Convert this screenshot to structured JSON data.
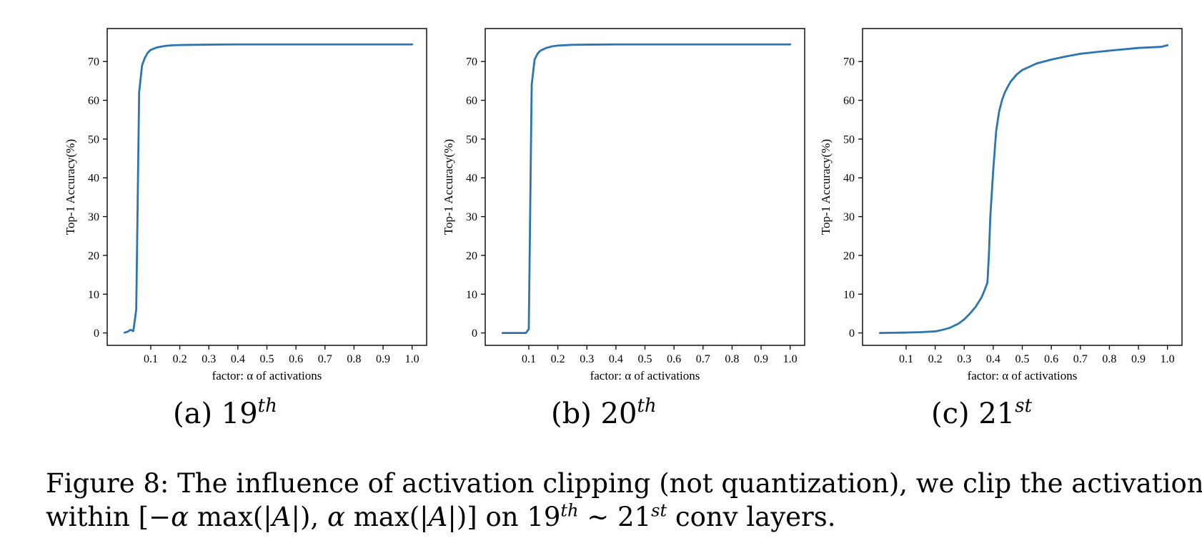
{
  "chart_data": [
    {
      "type": "line",
      "subcaption": {
        "label": "(a) 19",
        "sup": "th"
      },
      "xlabel": "factor: α of activations",
      "ylabel": "Top-1 Accuracy(%)",
      "xlim": [
        -0.05,
        1.05
      ],
      "ylim": [
        -3.2,
        78.5
      ],
      "xticks": [
        0.1,
        0.2,
        0.3,
        0.4,
        0.5,
        0.6,
        0.7,
        0.8,
        0.9,
        1.0
      ],
      "xtick_labels": [
        "0.1",
        "0.2",
        "0.3",
        "0.4",
        "0.5",
        "0.6",
        "0.7",
        "0.8",
        "0.9",
        "1.0"
      ],
      "yticks": [
        0,
        10,
        20,
        30,
        40,
        50,
        60,
        70
      ],
      "ytick_labels": [
        "0",
        "10",
        "20",
        "30",
        "40",
        "50",
        "60",
        "70"
      ],
      "color": "#2b75b2",
      "series": [
        {
          "x": [
            0.01,
            0.02,
            0.03,
            0.04,
            0.05,
            0.06,
            0.07,
            0.08,
            0.09,
            0.1,
            0.12,
            0.14,
            0.16,
            0.18,
            0.2,
            0.25,
            0.3,
            0.35,
            0.4,
            0.5,
            0.6,
            0.7,
            0.8,
            0.9,
            1.0
          ],
          "y": [
            0.1,
            0.3,
            0.8,
            0.5,
            6.0,
            62.0,
            69.0,
            71.0,
            72.3,
            73.0,
            73.6,
            73.9,
            74.1,
            74.2,
            74.25,
            74.3,
            74.35,
            74.38,
            74.4,
            74.4,
            74.4,
            74.4,
            74.4,
            74.4,
            74.4
          ]
        }
      ]
    },
    {
      "type": "line",
      "subcaption": {
        "label": "(b) 20",
        "sup": "th"
      },
      "xlabel": "factor: α of activations",
      "ylabel": "Top-1 Accuracy(%)",
      "xlim": [
        -0.05,
        1.05
      ],
      "ylim": [
        -3.2,
        78.5
      ],
      "xticks": [
        0.1,
        0.2,
        0.3,
        0.4,
        0.5,
        0.6,
        0.7,
        0.8,
        0.9,
        1.0
      ],
      "xtick_labels": [
        "0.1",
        "0.2",
        "0.3",
        "0.4",
        "0.5",
        "0.6",
        "0.7",
        "0.8",
        "0.9",
        "1.0"
      ],
      "yticks": [
        0,
        10,
        20,
        30,
        40,
        50,
        60,
        70
      ],
      "ytick_labels": [
        "0",
        "10",
        "20",
        "30",
        "40",
        "50",
        "60",
        "70"
      ],
      "color": "#2b75b2",
      "series": [
        {
          "x": [
            0.01,
            0.03,
            0.05,
            0.07,
            0.09,
            0.1,
            0.11,
            0.12,
            0.13,
            0.14,
            0.16,
            0.18,
            0.2,
            0.25,
            0.3,
            0.4,
            0.5,
            0.6,
            0.7,
            0.8,
            0.9,
            1.0
          ],
          "y": [
            0.0,
            0.0,
            0.0,
            0.0,
            0.0,
            1.0,
            64.0,
            70.5,
            72.0,
            72.8,
            73.5,
            73.9,
            74.1,
            74.3,
            74.35,
            74.4,
            74.4,
            74.4,
            74.4,
            74.4,
            74.4,
            74.4
          ]
        }
      ]
    },
    {
      "type": "line",
      "subcaption": {
        "label": "(c) 21",
        "sup": "st"
      },
      "xlabel": "factor: α of activations",
      "ylabel": "Top-1 Accuracy(%)",
      "xlim": [
        -0.05,
        1.05
      ],
      "ylim": [
        -3.2,
        78.5
      ],
      "xticks": [
        0.1,
        0.2,
        0.3,
        0.4,
        0.5,
        0.6,
        0.7,
        0.8,
        0.9,
        1.0
      ],
      "xtick_labels": [
        "0.1",
        "0.2",
        "0.3",
        "0.4",
        "0.5",
        "0.6",
        "0.7",
        "0.8",
        "0.9",
        "1.0"
      ],
      "yticks": [
        0,
        10,
        20,
        30,
        40,
        50,
        60,
        70
      ],
      "ytick_labels": [
        "0",
        "10",
        "20",
        "30",
        "40",
        "50",
        "60",
        "70"
      ],
      "color": "#2b75b2",
      "series": [
        {
          "x": [
            0.01,
            0.05,
            0.1,
            0.15,
            0.2,
            0.22,
            0.25,
            0.28,
            0.3,
            0.32,
            0.34,
            0.36,
            0.37,
            0.38,
            0.385,
            0.39,
            0.4,
            0.41,
            0.42,
            0.43,
            0.44,
            0.45,
            0.46,
            0.48,
            0.5,
            0.55,
            0.6,
            0.65,
            0.7,
            0.8,
            0.9,
            0.98,
            1.0
          ],
          "y": [
            0.0,
            0.05,
            0.1,
            0.2,
            0.4,
            0.7,
            1.3,
            2.4,
            3.5,
            5.0,
            6.8,
            9.2,
            11.0,
            13.0,
            20.0,
            30.0,
            42.0,
            52.0,
            57.0,
            60.0,
            62.0,
            63.5,
            64.8,
            66.6,
            67.8,
            69.5,
            70.5,
            71.3,
            72.0,
            72.8,
            73.5,
            73.8,
            74.2
          ]
        }
      ]
    }
  ],
  "caption": {
    "line1": "Figure 8:  The influence of activation clipping (not quantization), we clip the activation",
    "line2_pre": "within [−",
    "alpha1": "α",
    "max1": " max(|",
    "A1": "A",
    "mid": "|), ",
    "alpha2": "α",
    "max2": " max(|",
    "A2": "A",
    "close": "|)] on 19",
    "sup1": "th",
    "tilde": " ∼ 21",
    "sup2": "st",
    "tail": " conv layers."
  }
}
